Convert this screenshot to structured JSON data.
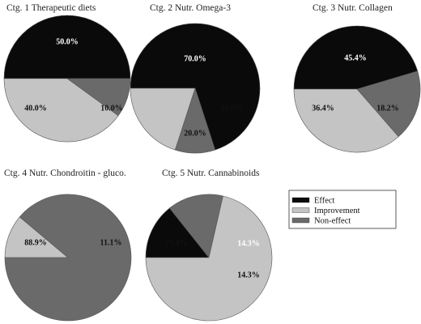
{
  "legend": {
    "entries": [
      {
        "label": "Effect",
        "color": "#0a0a0a"
      },
      {
        "label": "Improvement",
        "color": "#c4c4c4"
      },
      {
        "label": "Non-effect",
        "color": "#6a6a6a"
      }
    ],
    "placement": "right"
  },
  "chart_data": [
    {
      "type": "pie",
      "title": "Ctg. 1 Therapeutic diets",
      "slices": [
        {
          "name": "Effect",
          "value": 50.0,
          "label": "50.0%"
        },
        {
          "name": "Non-effect",
          "value": 10.0,
          "label": "10.0%"
        },
        {
          "name": "Improvement",
          "value": 40.0,
          "label": "40.0%"
        }
      ]
    },
    {
      "type": "pie",
      "title": "Ctg. 2 Nutr. Omega-3",
      "slices": [
        {
          "name": "Effect",
          "value": 70.0,
          "label": "70.0%"
        },
        {
          "name": "Non-effect",
          "value": 10.0,
          "label": "10.0%"
        },
        {
          "name": "Improvement",
          "value": 20.0,
          "label": "20.0%"
        }
      ]
    },
    {
      "type": "pie",
      "title": "Ctg. 3 Nutr. Collagen",
      "slices": [
        {
          "name": "Effect",
          "value": 45.4,
          "label": "45.4%"
        },
        {
          "name": "Non-effect",
          "value": 18.2,
          "label": "18.2%"
        },
        {
          "name": "Improvement",
          "value": 36.4,
          "label": "36.4%"
        }
      ]
    },
    {
      "type": "pie",
      "title": "Ctg. 4 Nutr. Chondroitin - gluco.",
      "slices": [
        {
          "name": "Improvement",
          "value": 11.1,
          "label": "11.1%"
        },
        {
          "name": "Non-effect",
          "value": 88.9,
          "label": "88.9%"
        }
      ]
    },
    {
      "type": "pie",
      "title": "Ctg. 5 Nutr. Cannabinoids",
      "slices": [
        {
          "name": "Effect",
          "value": 14.3,
          "label": "14.3%"
        },
        {
          "name": "Non-effect",
          "value": 14.3,
          "label": "14.3%"
        },
        {
          "name": "Improvement",
          "value": 71.4,
          "label": "71.4%"
        }
      ]
    }
  ]
}
